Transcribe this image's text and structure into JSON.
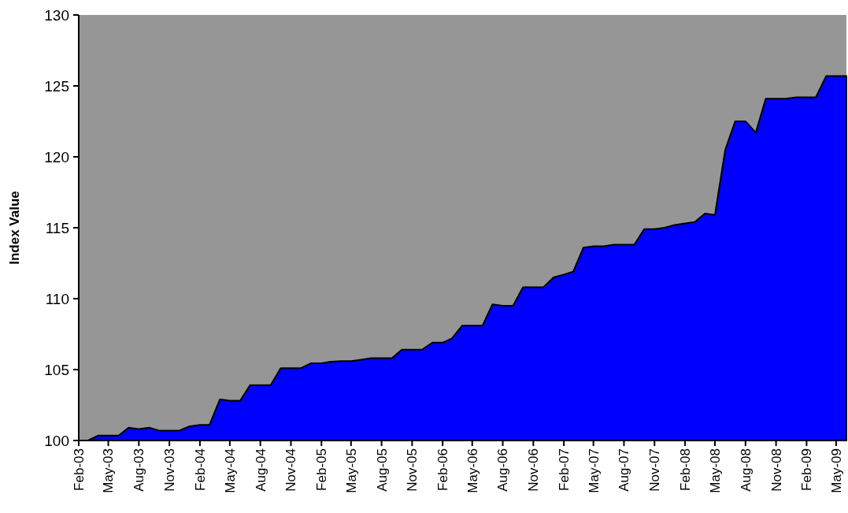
{
  "chart_data": {
    "type": "area",
    "ylabel": "Index Value",
    "x": [
      "2003-02",
      "2003-03",
      "2003-04",
      "2003-05",
      "2003-06",
      "2003-07",
      "2003-08",
      "2003-09",
      "2003-10",
      "2003-11",
      "2003-12",
      "2004-01",
      "2004-02",
      "2004-03",
      "2004-04",
      "2004-05",
      "2004-06",
      "2004-07",
      "2004-08",
      "2004-09",
      "2004-10",
      "2004-11",
      "2004-12",
      "2005-01",
      "2005-02",
      "2005-03",
      "2005-04",
      "2005-05",
      "2005-06",
      "2005-07",
      "2005-08",
      "2005-09",
      "2005-10",
      "2005-11",
      "2005-12",
      "2006-01",
      "2006-02",
      "2006-03",
      "2006-04",
      "2006-05",
      "2006-06",
      "2006-07",
      "2006-08",
      "2006-09",
      "2006-10",
      "2006-11",
      "2006-12",
      "2007-01",
      "2007-02",
      "2007-03",
      "2007-04",
      "2007-05",
      "2007-06",
      "2007-07",
      "2007-08",
      "2007-09",
      "2007-10",
      "2007-11",
      "2007-12",
      "2008-01",
      "2008-02",
      "2008-03",
      "2008-04",
      "2008-05",
      "2008-06",
      "2008-07",
      "2008-08",
      "2008-09",
      "2008-10",
      "2008-11",
      "2008-12",
      "2009-01",
      "2009-02",
      "2009-03",
      "2009-04",
      "2009-05",
      "2009-06"
    ],
    "series": [
      {
        "color": "#0000ff",
        "values": [
          100,
          100,
          100.35,
          100.35,
          100.35,
          100.9,
          100.8,
          100.9,
          100.7,
          100.7,
          100.7,
          101,
          101.1,
          101.1,
          102.9,
          102.8,
          102.8,
          103.9,
          103.9,
          103.9,
          105.1,
          105.1,
          105.1,
          105.45,
          105.45,
          105.55,
          105.6,
          105.6,
          105.7,
          105.8,
          105.8,
          105.8,
          106.4,
          106.4,
          106.4,
          106.9,
          106.9,
          107.2,
          108.1,
          108.1,
          108.1,
          109.6,
          109.5,
          109.5,
          110.8,
          110.8,
          110.8,
          111.5,
          111.7,
          111.9,
          113.6,
          113.7,
          113.7,
          113.8,
          113.8,
          113.8,
          114.9,
          114.9,
          115,
          115.2,
          115.3,
          115.4,
          116,
          115.9,
          120.5,
          122.5,
          122.5,
          121.7,
          124.1,
          124.1,
          124.1,
          124.2,
          124.2,
          124.2,
          125.7,
          125.7,
          125.7
        ]
      }
    ],
    "xlim": [
      "2003-02",
      "2009-06"
    ],
    "xticks": [
      {
        "value": "2003-02",
        "label": "Feb-03"
      },
      {
        "value": "2003-05",
        "label": "May-03"
      },
      {
        "value": "2003-08",
        "label": "Aug-03"
      },
      {
        "value": "2003-11",
        "label": "Nov-03"
      },
      {
        "value": "2004-02",
        "label": "Feb-04"
      },
      {
        "value": "2004-05",
        "label": "May-04"
      },
      {
        "value": "2004-08",
        "label": "Aug-04"
      },
      {
        "value": "2004-11",
        "label": "Nov-04"
      },
      {
        "value": "2005-02",
        "label": "Feb-05"
      },
      {
        "value": "2005-05",
        "label": "May-05"
      },
      {
        "value": "2005-08",
        "label": "Aug-05"
      },
      {
        "value": "2005-11",
        "label": "Nov-05"
      },
      {
        "value": "2006-02",
        "label": "Feb-06"
      },
      {
        "value": "2006-05",
        "label": "May-06"
      },
      {
        "value": "2006-08",
        "label": "Aug-06"
      },
      {
        "value": "2006-11",
        "label": "Nov-06"
      },
      {
        "value": "2007-02",
        "label": "Feb-07"
      },
      {
        "value": "2007-05",
        "label": "May-07"
      },
      {
        "value": "2007-08",
        "label": "Aug-07"
      },
      {
        "value": "2007-11",
        "label": "Nov-07"
      },
      {
        "value": "2008-02",
        "label": "Feb-08"
      },
      {
        "value": "2008-05",
        "label": "May-08"
      },
      {
        "value": "2008-08",
        "label": "Aug-08"
      },
      {
        "value": "2008-11",
        "label": "Nov-08"
      },
      {
        "value": "2009-02",
        "label": "Feb-09"
      },
      {
        "value": "2009-05",
        "label": "May-09"
      }
    ],
    "ylim": [
      100,
      130
    ],
    "yticks": [
      100,
      105,
      110,
      115,
      120,
      125,
      130
    ]
  }
}
